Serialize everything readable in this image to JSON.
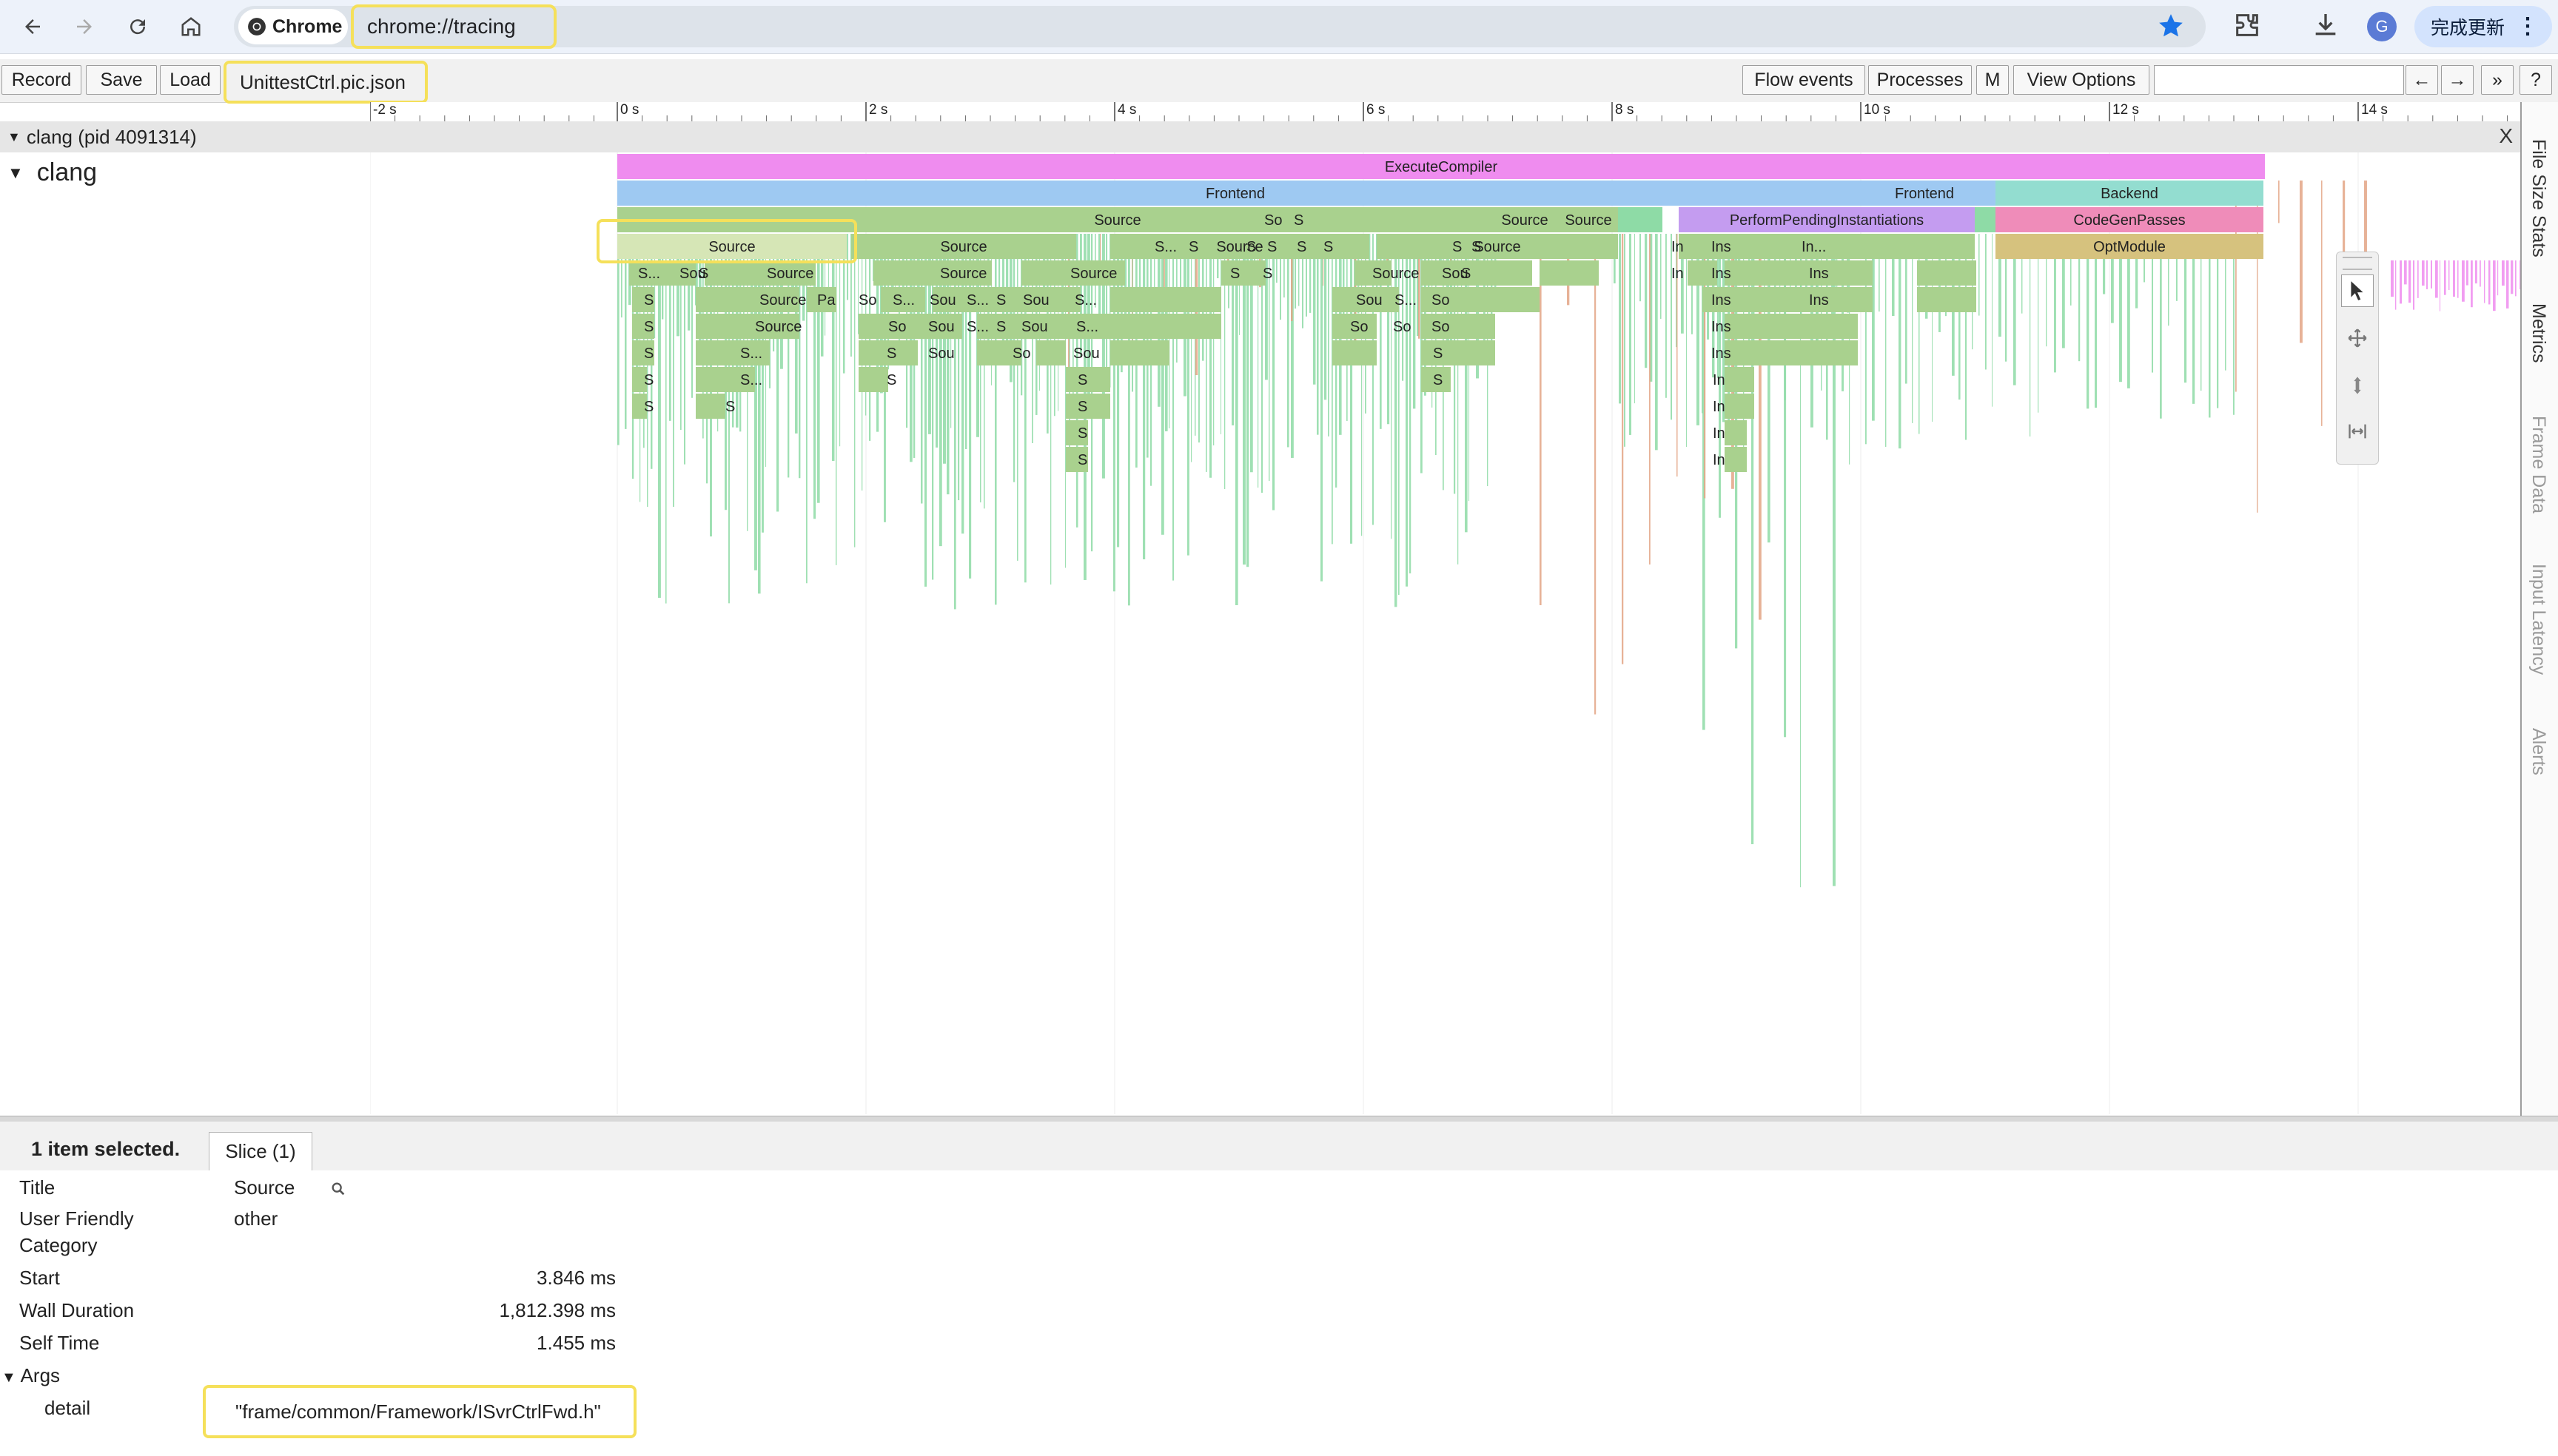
{
  "browser": {
    "chip_label": "Chrome",
    "url": "chrome://tracing",
    "avatar_initial": "G",
    "update_label": "完成更新"
  },
  "toolbar": {
    "record": "Record",
    "save": "Save",
    "load": "Load",
    "file_title": "UnittestCtrl.pic.json",
    "flow_events": "Flow events",
    "processes": "Processes",
    "m": "M",
    "view_options": "View Options",
    "back_arrow": "←",
    "forward_arrow": "→",
    "more": "»",
    "help": "?"
  },
  "ruler": {
    "labels": [
      "-2 s",
      "0 s",
      "2 s",
      "4 s",
      "6 s",
      "8 s",
      "10 s",
      "12 s",
      "14 s"
    ]
  },
  "process": {
    "header": "clang (pid 4091314)",
    "close": "X",
    "thread": "clang"
  },
  "slices": {
    "execute_compiler": "ExecuteCompiler",
    "frontend": "Frontend",
    "frontend2": "Frontend",
    "backend": "Backend",
    "perform_pending": "PerformPendingInstantiations",
    "codegen": "CodeGenPasses",
    "optmodule": "OptModule",
    "source": "Source"
  },
  "side_tabs": [
    "File Size Stats",
    "Metrics",
    "Frame Data",
    "Input Latency",
    "Alerts"
  ],
  "analysis": {
    "summary": "1 item selected.",
    "tab": "Slice (1)",
    "rows": {
      "title_label": "Title",
      "title_value": "Source",
      "category_label_1": "User Friendly",
      "category_label_2": "Category",
      "category_value": "other",
      "start_label": "Start",
      "start_value": "3.846 ms",
      "wall_label": "Wall Duration",
      "wall_value": "1,812.398 ms",
      "self_label": "Self Time",
      "self_value": "1.455 ms",
      "args_label": "Args",
      "detail_label": "detail",
      "detail_value": "\"frame/common/Framework/ISvrCtrlFwd.h\""
    }
  },
  "colors": {
    "execute_compiler": "#ef8cef",
    "frontend": "#9ec9f2",
    "backend": "#93ddd0",
    "source": "#a9d18e",
    "source_light": "#d6e6b6",
    "perform_pending": "#c49cf0",
    "codegen": "#ef8cb9",
    "optmodule": "#d6c27e",
    "green_spike": "#8edba6",
    "orange_spike": "#e3a585",
    "highlight": "#f5e05a",
    "accent_blue": "#1a73e8"
  }
}
